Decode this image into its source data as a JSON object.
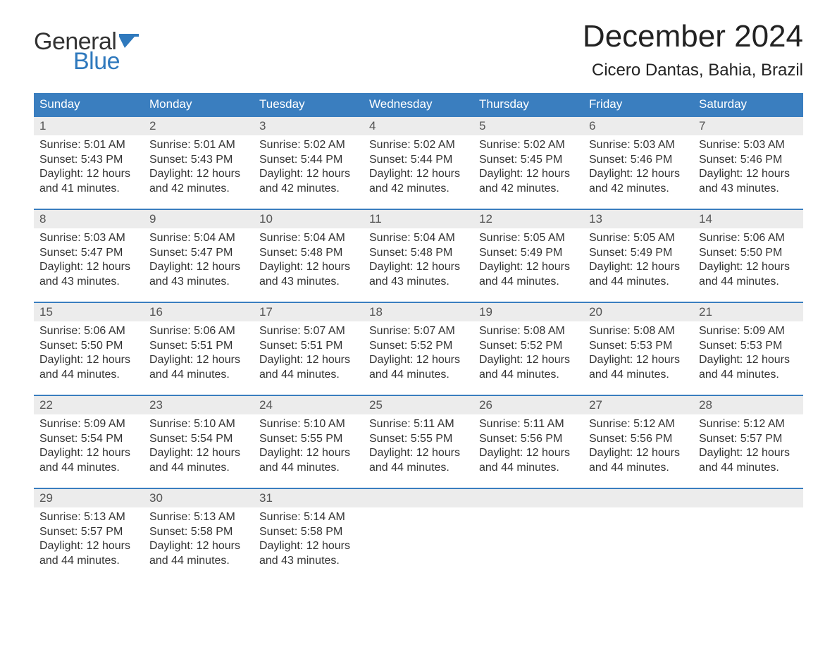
{
  "colors": {
    "brand_blue": "#2f79bd",
    "header_blue": "#3a7ebf",
    "row_grey": "#ececec",
    "text_dark": "#333333",
    "background": "#ffffff"
  },
  "logo": {
    "line1": "General",
    "line2": "Blue"
  },
  "title": "December 2024",
  "location": "Cicero Dantas, Bahia, Brazil",
  "weekdays": [
    "Sunday",
    "Monday",
    "Tuesday",
    "Wednesday",
    "Thursday",
    "Friday",
    "Saturday"
  ],
  "labels": {
    "sunrise": "Sunrise:",
    "sunset": "Sunset:",
    "daylight": "Daylight:"
  },
  "days": [
    {
      "n": 1,
      "sunrise": "5:01 AM",
      "sunset": "5:43 PM",
      "daylight": "12 hours and 41 minutes."
    },
    {
      "n": 2,
      "sunrise": "5:01 AM",
      "sunset": "5:43 PM",
      "daylight": "12 hours and 42 minutes."
    },
    {
      "n": 3,
      "sunrise": "5:02 AM",
      "sunset": "5:44 PM",
      "daylight": "12 hours and 42 minutes."
    },
    {
      "n": 4,
      "sunrise": "5:02 AM",
      "sunset": "5:44 PM",
      "daylight": "12 hours and 42 minutes."
    },
    {
      "n": 5,
      "sunrise": "5:02 AM",
      "sunset": "5:45 PM",
      "daylight": "12 hours and 42 minutes."
    },
    {
      "n": 6,
      "sunrise": "5:03 AM",
      "sunset": "5:46 PM",
      "daylight": "12 hours and 42 minutes."
    },
    {
      "n": 7,
      "sunrise": "5:03 AM",
      "sunset": "5:46 PM",
      "daylight": "12 hours and 43 minutes."
    },
    {
      "n": 8,
      "sunrise": "5:03 AM",
      "sunset": "5:47 PM",
      "daylight": "12 hours and 43 minutes."
    },
    {
      "n": 9,
      "sunrise": "5:04 AM",
      "sunset": "5:47 PM",
      "daylight": "12 hours and 43 minutes."
    },
    {
      "n": 10,
      "sunrise": "5:04 AM",
      "sunset": "5:48 PM",
      "daylight": "12 hours and 43 minutes."
    },
    {
      "n": 11,
      "sunrise": "5:04 AM",
      "sunset": "5:48 PM",
      "daylight": "12 hours and 43 minutes."
    },
    {
      "n": 12,
      "sunrise": "5:05 AM",
      "sunset": "5:49 PM",
      "daylight": "12 hours and 44 minutes."
    },
    {
      "n": 13,
      "sunrise": "5:05 AM",
      "sunset": "5:49 PM",
      "daylight": "12 hours and 44 minutes."
    },
    {
      "n": 14,
      "sunrise": "5:06 AM",
      "sunset": "5:50 PM",
      "daylight": "12 hours and 44 minutes."
    },
    {
      "n": 15,
      "sunrise": "5:06 AM",
      "sunset": "5:50 PM",
      "daylight": "12 hours and 44 minutes."
    },
    {
      "n": 16,
      "sunrise": "5:06 AM",
      "sunset": "5:51 PM",
      "daylight": "12 hours and 44 minutes."
    },
    {
      "n": 17,
      "sunrise": "5:07 AM",
      "sunset": "5:51 PM",
      "daylight": "12 hours and 44 minutes."
    },
    {
      "n": 18,
      "sunrise": "5:07 AM",
      "sunset": "5:52 PM",
      "daylight": "12 hours and 44 minutes."
    },
    {
      "n": 19,
      "sunrise": "5:08 AM",
      "sunset": "5:52 PM",
      "daylight": "12 hours and 44 minutes."
    },
    {
      "n": 20,
      "sunrise": "5:08 AM",
      "sunset": "5:53 PM",
      "daylight": "12 hours and 44 minutes."
    },
    {
      "n": 21,
      "sunrise": "5:09 AM",
      "sunset": "5:53 PM",
      "daylight": "12 hours and 44 minutes."
    },
    {
      "n": 22,
      "sunrise": "5:09 AM",
      "sunset": "5:54 PM",
      "daylight": "12 hours and 44 minutes."
    },
    {
      "n": 23,
      "sunrise": "5:10 AM",
      "sunset": "5:54 PM",
      "daylight": "12 hours and 44 minutes."
    },
    {
      "n": 24,
      "sunrise": "5:10 AM",
      "sunset": "5:55 PM",
      "daylight": "12 hours and 44 minutes."
    },
    {
      "n": 25,
      "sunrise": "5:11 AM",
      "sunset": "5:55 PM",
      "daylight": "12 hours and 44 minutes."
    },
    {
      "n": 26,
      "sunrise": "5:11 AM",
      "sunset": "5:56 PM",
      "daylight": "12 hours and 44 minutes."
    },
    {
      "n": 27,
      "sunrise": "5:12 AM",
      "sunset": "5:56 PM",
      "daylight": "12 hours and 44 minutes."
    },
    {
      "n": 28,
      "sunrise": "5:12 AM",
      "sunset": "5:57 PM",
      "daylight": "12 hours and 44 minutes."
    },
    {
      "n": 29,
      "sunrise": "5:13 AM",
      "sunset": "5:57 PM",
      "daylight": "12 hours and 44 minutes."
    },
    {
      "n": 30,
      "sunrise": "5:13 AM",
      "sunset": "5:58 PM",
      "daylight": "12 hours and 44 minutes."
    },
    {
      "n": 31,
      "sunrise": "5:14 AM",
      "sunset": "5:58 PM",
      "daylight": "12 hours and 43 minutes."
    }
  ],
  "layout": {
    "start_weekday_index": 0,
    "columns": 7,
    "font_family": "Arial",
    "title_fontsize_pt": 33,
    "location_fontsize_pt": 18,
    "header_fontsize_pt": 13,
    "body_fontsize_pt": 12
  }
}
